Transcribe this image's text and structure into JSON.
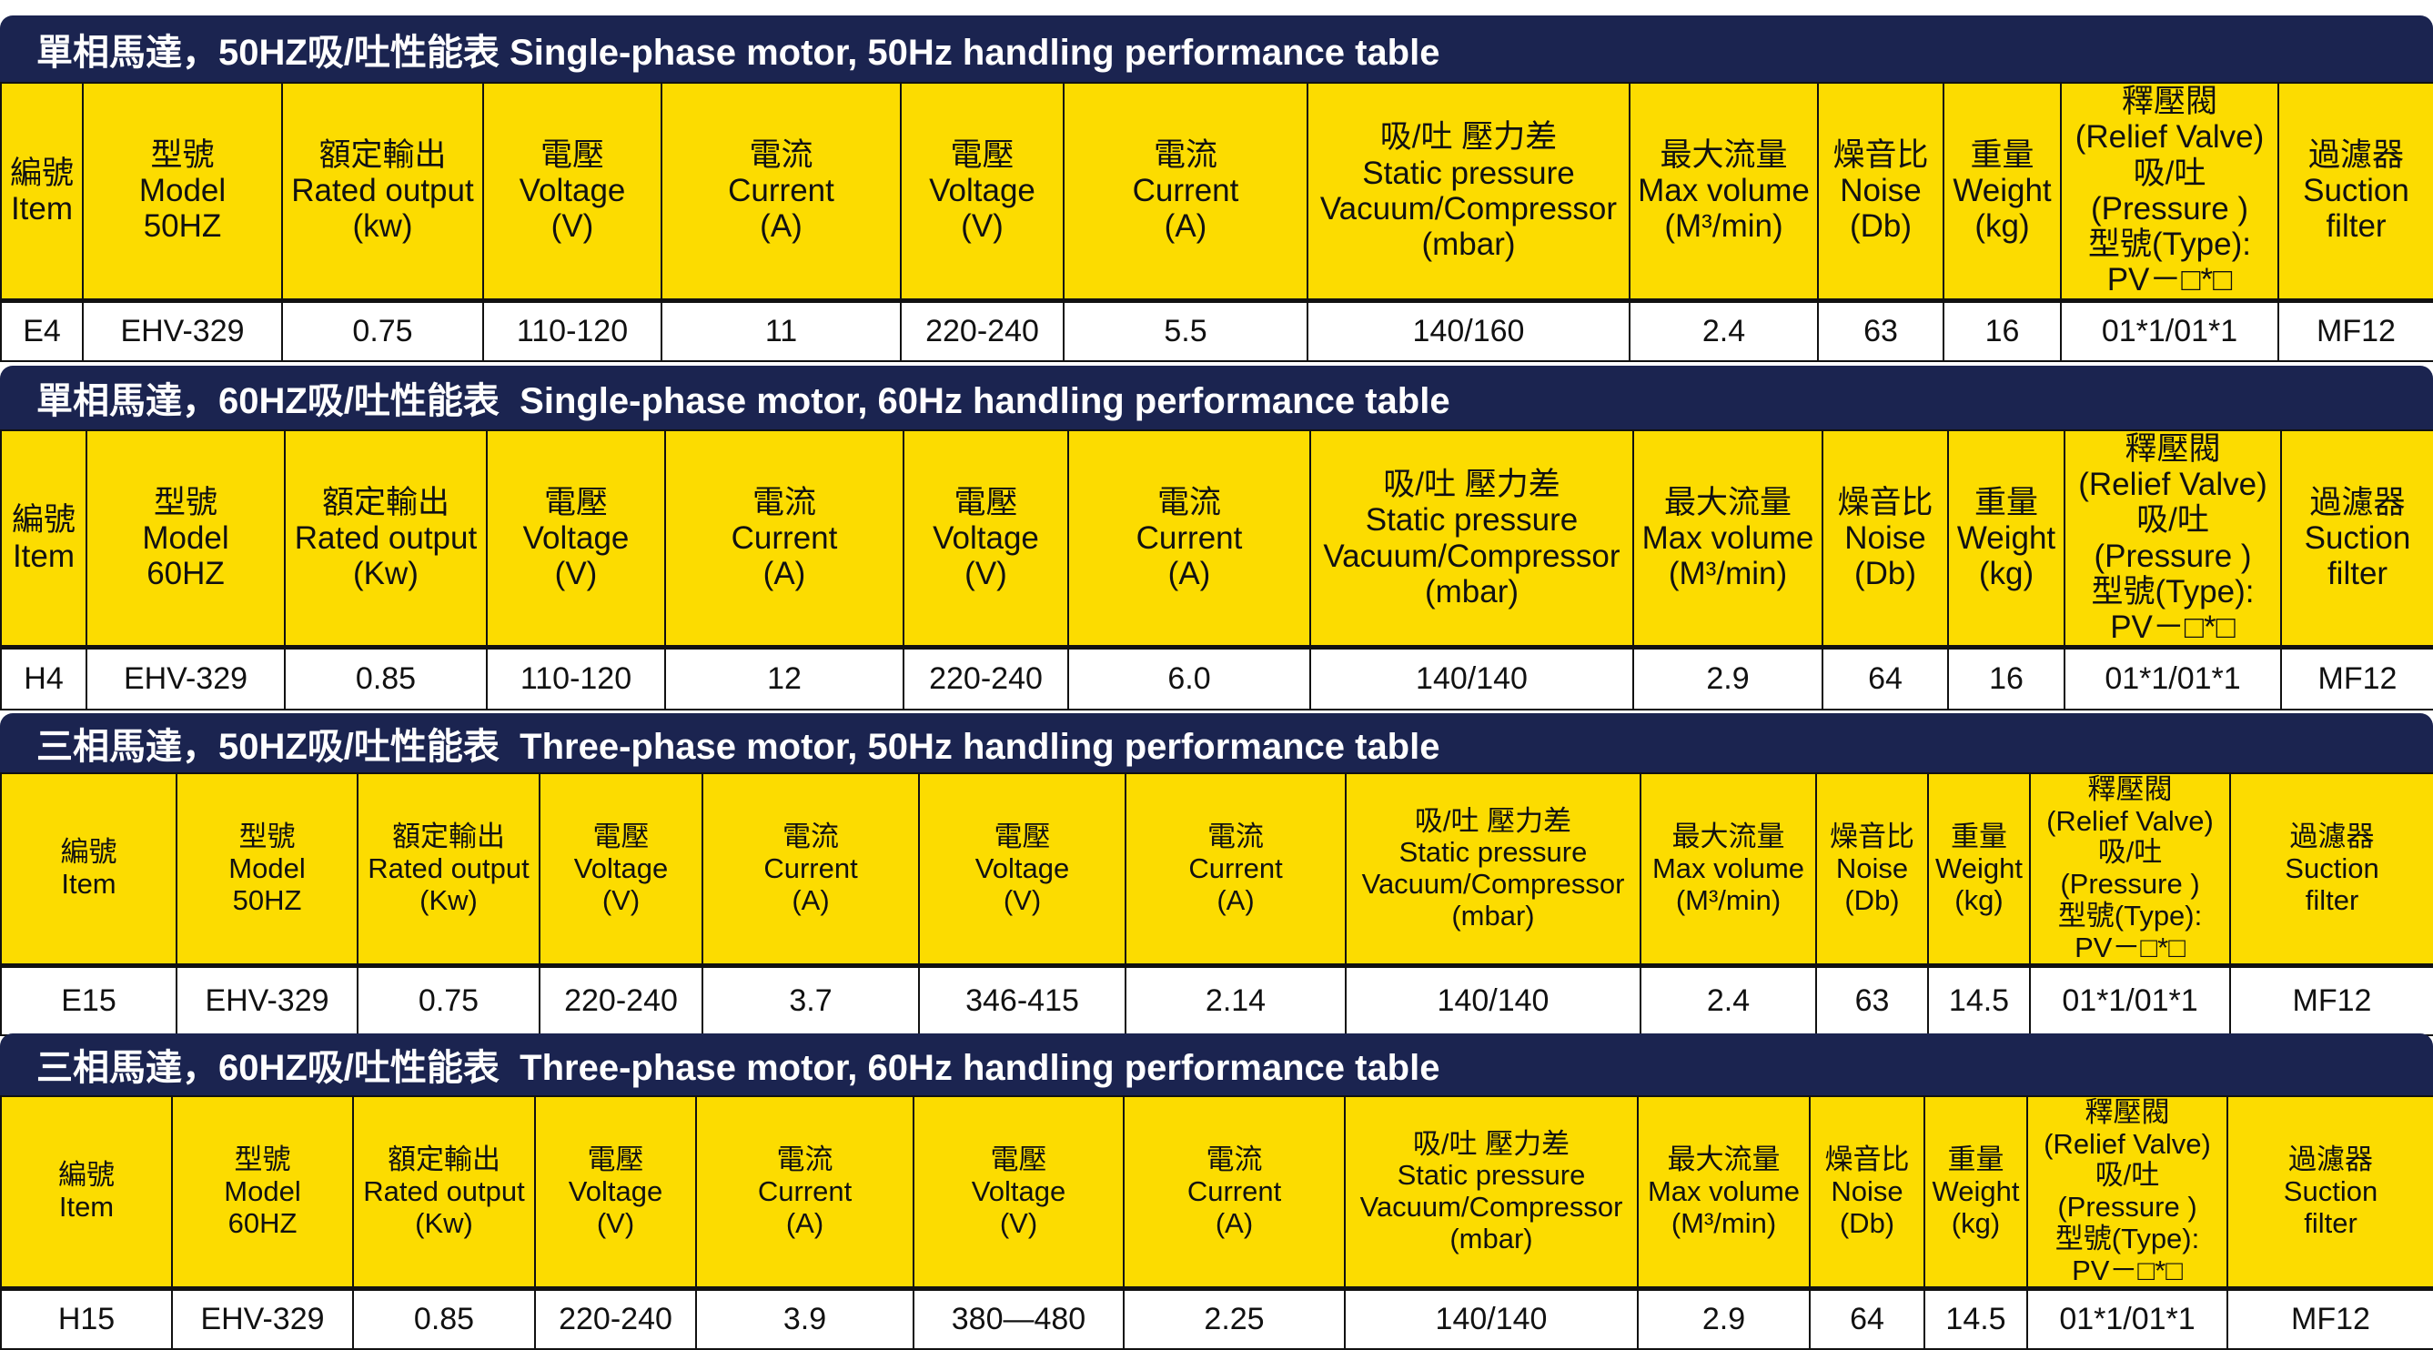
{
  "colors": {
    "title_bg": "#1b2450",
    "header_bg": "#fcdc00"
  },
  "sections": [
    {
      "title": "單相馬達，50HZ吸/吐性能表 Single-phase motor, 50Hz handling performance table",
      "headers": [
        [
          "編號",
          "Item"
        ],
        [
          "型號",
          "Model",
          "50HZ"
        ],
        [
          "額定輸出",
          "Rated output",
          "(kw)"
        ],
        [
          "電壓",
          "Voltage",
          "(V)"
        ],
        [
          "電流",
          "Current",
          "(A)"
        ],
        [
          "電壓",
          "Voltage",
          "(V)"
        ],
        [
          "電流",
          "Current",
          "(A)"
        ],
        [
          "吸/吐 壓力差",
          "Static pressure",
          "Vacuum/Compressor",
          "(mbar)"
        ],
        [
          "最大流量",
          "Max volume",
          "(M³/min)"
        ],
        [
          "燥音比",
          "Noise",
          "(Db)"
        ],
        [
          "重量",
          "Weight",
          "(kg)"
        ],
        [
          "釋壓閥",
          "(Relief Valve)",
          "吸/吐",
          "(Pressure )",
          "型號(Type):",
          "PV－□*□"
        ],
        [
          "過濾器",
          "Suction",
          "filter"
        ]
      ],
      "row": [
        "E4",
        "EHV-329",
        "0.75",
        "110-120",
        "11",
        "220-240",
        "5.5",
        "140/160",
        "2.4",
        "63",
        "16",
        "01*1/01*1",
        "MF12"
      ]
    },
    {
      "title": "單相馬達，60HZ吸/吐性能表  Single-phase motor, 60Hz handling performance table",
      "headers": [
        [
          "編號",
          "Item"
        ],
        [
          "型號",
          "Model",
          "60HZ"
        ],
        [
          "額定輸出",
          "Rated output",
          "(Kw)"
        ],
        [
          "電壓",
          "Voltage",
          "(V)"
        ],
        [
          "電流",
          "Current",
          "(A)"
        ],
        [
          "電壓",
          "Voltage",
          "(V)"
        ],
        [
          "電流",
          "Current",
          "(A)"
        ],
        [
          "吸/吐 壓力差",
          "Static pressure",
          "Vacuum/Compressor",
          "(mbar)"
        ],
        [
          "最大流量",
          "Max volume",
          "(M³/min)"
        ],
        [
          "燥音比",
          "Noise",
          "(Db)"
        ],
        [
          "重量",
          "Weight",
          "(kg)"
        ],
        [
          "釋壓閥",
          "(Relief Valve)",
          "吸/吐",
          "(Pressure )",
          "型號(Type):",
          "PV－□*□"
        ],
        [
          "過濾器",
          "Suction",
          "filter"
        ]
      ],
      "row": [
        "H4",
        "EHV-329",
        "0.85",
        "110-120",
        "12",
        "220-240",
        "6.0",
        "140/140",
        "2.9",
        "64",
        "16",
        "01*1/01*1",
        "MF12"
      ]
    },
    {
      "title": "三相馬達，50HZ吸/吐性能表  Three-phase motor, 50Hz handling performance table",
      "headers": [
        [
          "編號",
          "Item"
        ],
        [
          "型號",
          "Model",
          "50HZ"
        ],
        [
          "額定輸出",
          "Rated output",
          "(Kw)"
        ],
        [
          "電壓",
          "Voltage",
          "(V)"
        ],
        [
          "電流",
          "Current",
          "(A)"
        ],
        [
          "電壓",
          "Voltage",
          "(V)"
        ],
        [
          "電流",
          "Current",
          "(A)"
        ],
        [
          "吸/吐 壓力差",
          "Static pressure",
          "Vacuum/Compressor",
          "(mbar)"
        ],
        [
          "最大流量",
          "Max volume",
          "(M³/min)"
        ],
        [
          "燥音比",
          "Noise",
          "(Db)"
        ],
        [
          "重量",
          "Weight",
          "(kg)"
        ],
        [
          "釋壓閥",
          "(Relief Valve)",
          "吸/吐",
          "(Pressure )",
          "型號(Type):",
          "PV－□*□"
        ],
        [
          "過濾器",
          "Suction",
          "filter"
        ]
      ],
      "row": [
        "E15",
        "EHV-329",
        "0.75",
        "220-240",
        "3.7",
        "346-415",
        "2.14",
        "140/140",
        "2.4",
        "63",
        "14.5",
        "01*1/01*1",
        "MF12"
      ]
    },
    {
      "title": "三相馬達，60HZ吸/吐性能表  Three-phase motor, 60Hz handling performance table",
      "headers": [
        [
          "編號",
          "Item"
        ],
        [
          "型號",
          "Model",
          "60HZ"
        ],
        [
          "額定輸出",
          "Rated output",
          "(Kw)"
        ],
        [
          "電壓",
          "Voltage",
          "(V)"
        ],
        [
          "電流",
          "Current",
          "(A)"
        ],
        [
          "電壓",
          "Voltage",
          "(V)"
        ],
        [
          "電流",
          "Current",
          "(A)"
        ],
        [
          "吸/吐 壓力差",
          "Static pressure",
          "Vacuum/Compressor",
          "(mbar)"
        ],
        [
          "最大流量",
          "Max volume",
          "(M³/min)"
        ],
        [
          "燥音比",
          "Noise",
          "(Db)"
        ],
        [
          "重量",
          "Weight",
          "(kg)"
        ],
        [
          "釋壓閥",
          "(Relief Valve)",
          "吸/吐",
          "(Pressure )",
          "型號(Type):",
          "PV－□*□"
        ],
        [
          "過濾器",
          "Suction",
          "filter"
        ]
      ],
      "row": [
        "H15",
        "EHV-329",
        "0.85",
        "220-240",
        "3.9",
        "380—480",
        "2.25",
        "140/140",
        "2.9",
        "64",
        "14.5",
        "01*1/01*1",
        "MF12"
      ]
    }
  ]
}
